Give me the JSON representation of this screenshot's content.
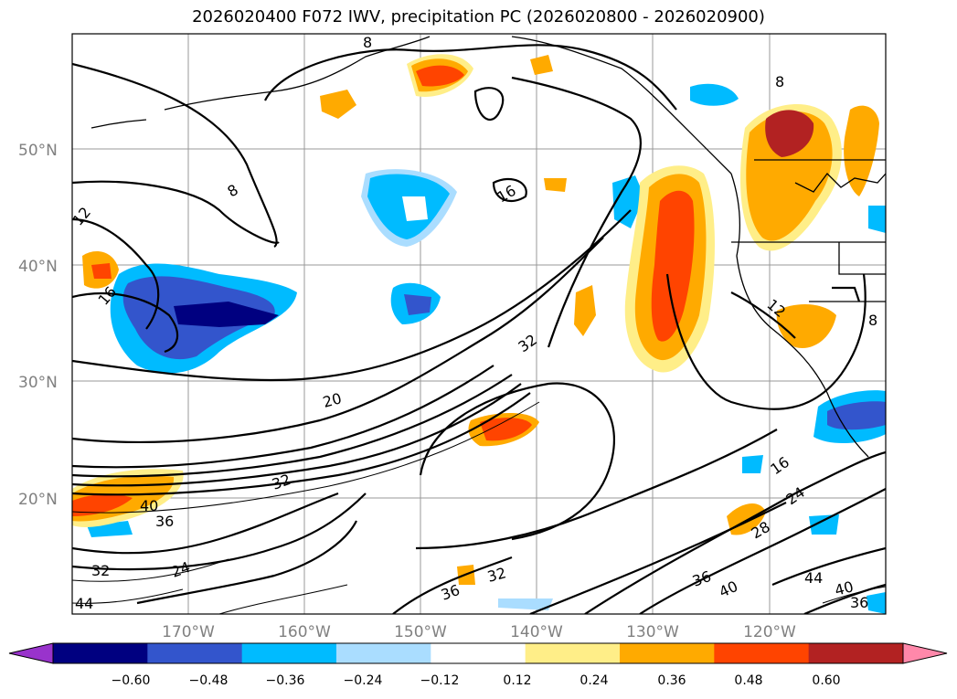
{
  "title": "2026020400 F072 IWV, precipitation PC (2026020800 - 2026020900)",
  "map": {
    "lat_labels": [
      "50°N",
      "40°N",
      "30°N",
      "20°N"
    ],
    "lon_labels": [
      "170°W",
      "160°W",
      "150°W",
      "140°W",
      "130°W",
      "120°W"
    ],
    "contour_labels": [
      "8",
      "8",
      "8",
      "12",
      "12",
      "16",
      "16",
      "16",
      "20",
      "24",
      "24",
      "28",
      "32",
      "32",
      "32",
      "32",
      "36",
      "36",
      "36",
      "36",
      "40",
      "40",
      "40",
      "44",
      "44",
      "8"
    ]
  },
  "colorbar": {
    "ticks": [
      "−0.60",
      "−0.48",
      "−0.36",
      "−0.24",
      "−0.12",
      "0.12",
      "0.24",
      "0.36",
      "0.48",
      "0.60"
    ],
    "colors": [
      "#9933cc",
      "#000080",
      "#3355cc",
      "#00bbff",
      "#aaddff",
      "#ffffff",
      "#ffee88",
      "#ffaa00",
      "#ff4400",
      "#b22222",
      "#ff88aa"
    ]
  }
}
